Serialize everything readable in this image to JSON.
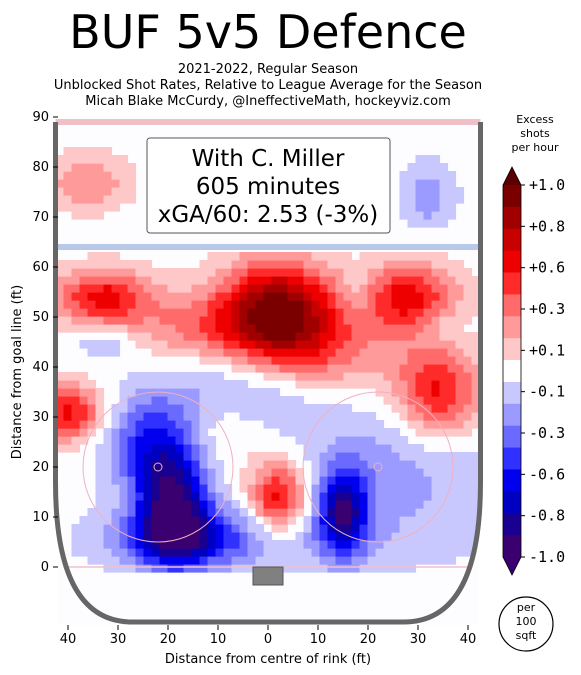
{
  "title": "BUF 5v5 Defence",
  "subtitles": [
    "2021-2022, Regular Season",
    "Unblocked Shot Rates, Relative to League Average for the Season",
    "Micah Blake McCurdy, @IneffectiveMath, hockeyviz.com"
  ],
  "annotation": {
    "lines": [
      "With C. Miller",
      "605 minutes",
      "xGA/60: 2.53 (-3%)"
    ]
  },
  "colorbar": {
    "title_lines": [
      "Excess",
      "shots",
      "per hour"
    ],
    "tick_labels": [
      "+1.0",
      "+0.8",
      "+0.6",
      "+0.3",
      "+0.1",
      "-0.1",
      "-0.3",
      "-0.6",
      "-0.8",
      "-1.0"
    ],
    "unit_lines": [
      "per",
      "100",
      "sqft"
    ]
  },
  "colors": {
    "positive_scale": [
      "#ffc8c8",
      "#ff9a9a",
      "#ff6a6a",
      "#ff2a2a",
      "#ee0000",
      "#c80000",
      "#a00000",
      "#7a0000"
    ],
    "negative_scale": [
      "#c8c8ff",
      "#9a9aff",
      "#6a6aff",
      "#3030ff",
      "#0000ee",
      "#0000c0",
      "#1a0090",
      "#3a0070"
    ],
    "rink_border": "#666666",
    "blue_line": "#b8c8e8",
    "goal_line": "#f0c0c8"
  },
  "chart_data": {
    "type": "heatmap",
    "xlabel": "Distance from centre of rink (ft)",
    "ylabel": "Distance from goal line (ft)",
    "xlim": [
      -42.5,
      42.5
    ],
    "ylim": [
      -11,
      89
    ],
    "xticks": [
      -40,
      -30,
      -20,
      -10,
      0,
      10,
      20,
      30,
      40
    ],
    "xtick_labels": [
      "40",
      "30",
      "20",
      "10",
      "0",
      "10",
      "20",
      "30",
      "40"
    ],
    "yticks": [
      0,
      10,
      20,
      30,
      40,
      50,
      60,
      70,
      80,
      90
    ],
    "ytick_labels": [
      "0",
      "10",
      "20",
      "30",
      "40",
      "50",
      "60",
      "70",
      "80",
      "90"
    ],
    "value_range": [
      -1.0,
      1.0
    ],
    "hotspots": [
      {
        "x": 2,
        "y": 51,
        "sx": 8,
        "sy": 7,
        "value": 1.0
      },
      {
        "x": 2,
        "y": 14,
        "sx": 4,
        "sy": 5,
        "value": 0.65
      },
      {
        "x": -33,
        "y": 54,
        "sx": 7,
        "sy": 4,
        "value": 0.6
      },
      {
        "x": 28,
        "y": 54,
        "sx": 7,
        "sy": 5,
        "value": 0.6
      },
      {
        "x": -40,
        "y": 31,
        "sx": 5,
        "sy": 4,
        "value": 0.6
      },
      {
        "x": 34,
        "y": 35,
        "sx": 6,
        "sy": 7,
        "value": 0.6
      },
      {
        "x": -15,
        "y": 48,
        "sx": 9,
        "sy": 5,
        "value": 0.3
      },
      {
        "x": 12,
        "y": 43,
        "sx": 10,
        "sy": 6,
        "value": 0.3
      },
      {
        "x": -36,
        "y": 77,
        "sx": 6,
        "sy": 4,
        "value": 0.3
      },
      {
        "x": -8,
        "y": 27,
        "sx": 6,
        "sy": 5,
        "value": 0.15
      },
      {
        "x": -19,
        "y": 13,
        "sx": 5,
        "sy": 8,
        "value": -0.9
      },
      {
        "x": -16,
        "y": 6,
        "sx": 9,
        "sy": 4,
        "value": -0.5
      },
      {
        "x": -24,
        "y": 25,
        "sx": 6,
        "sy": 7,
        "value": -0.45
      },
      {
        "x": 15,
        "y": 11,
        "sx": 3.5,
        "sy": 6,
        "value": -0.8
      },
      {
        "x": -5,
        "y": 35,
        "sx": 12,
        "sy": 6,
        "value": -0.25
      },
      {
        "x": 26,
        "y": 20,
        "sx": 14,
        "sy": 9,
        "value": -0.25
      },
      {
        "x": 0,
        "y": 5,
        "sx": 28,
        "sy": 5,
        "value": -0.15
      },
      {
        "x": 32,
        "y": 74,
        "sx": 4,
        "sy": 5,
        "value": -0.25
      },
      {
        "x": 35,
        "y": 48,
        "sx": 4,
        "sy": 3,
        "value": -0.15
      },
      {
        "x": 18,
        "y": 55,
        "sx": 2.5,
        "sy": 4,
        "value": -0.15
      },
      {
        "x": -33,
        "y": 45,
        "sx": 4,
        "sy": 2.5,
        "value": -0.2
      },
      {
        "x": -10,
        "y": 75,
        "sx": 6,
        "sy": 3,
        "value": 0.0
      }
    ]
  }
}
